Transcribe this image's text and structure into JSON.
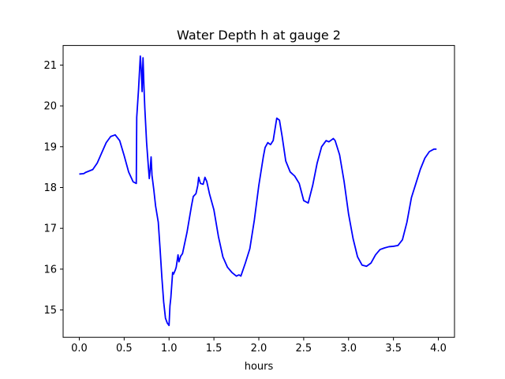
{
  "chart_data": {
    "type": "line",
    "title": "Water Depth h at gauge 2",
    "xlabel": "hours",
    "ylabel": "",
    "xlim": [
      -0.18,
      4.18
    ],
    "ylim": [
      14.33,
      21.48
    ],
    "xticks": [
      0.0,
      0.5,
      1.0,
      1.5,
      2.0,
      2.5,
      3.0,
      3.5,
      4.0
    ],
    "xtick_labels": [
      "0.0",
      "0.5",
      "1.0",
      "1.5",
      "2.0",
      "2.5",
      "3.0",
      "3.5",
      "4.0"
    ],
    "yticks": [
      15,
      16,
      17,
      18,
      19,
      20,
      21
    ],
    "ytick_labels": [
      "15",
      "16",
      "17",
      "18",
      "19",
      "20",
      "21"
    ],
    "grid": false,
    "colors": {
      "line": "#0000ff",
      "axes": "#000000",
      "background": "#ffffff"
    },
    "series": [
      {
        "color": "#0000ff",
        "x": [
          0.0,
          0.05,
          0.07,
          0.15,
          0.2,
          0.25,
          0.3,
          0.35,
          0.4,
          0.45,
          0.5,
          0.55,
          0.6,
          0.635,
          0.64,
          0.66,
          0.68,
          0.69,
          0.7,
          0.71,
          0.72,
          0.73,
          0.75,
          0.77,
          0.78,
          0.79,
          0.8,
          0.81,
          0.83,
          0.85,
          0.88,
          0.9,
          0.92,
          0.94,
          0.96,
          0.98,
          1.0,
          1.01,
          1.02,
          1.04,
          1.05,
          1.07,
          1.08,
          1.1,
          1.11,
          1.13,
          1.15,
          1.2,
          1.25,
          1.27,
          1.3,
          1.32,
          1.33,
          1.35,
          1.38,
          1.4,
          1.42,
          1.45,
          1.5,
          1.55,
          1.6,
          1.65,
          1.7,
          1.75,
          1.78,
          1.8,
          1.85,
          1.9,
          1.95,
          2.0,
          2.05,
          2.07,
          2.1,
          2.13,
          2.16,
          2.2,
          2.23,
          2.26,
          2.3,
          2.35,
          2.4,
          2.45,
          2.5,
          2.55,
          2.6,
          2.65,
          2.7,
          2.75,
          2.78,
          2.8,
          2.83,
          2.85,
          2.9,
          2.95,
          3.0,
          3.05,
          3.1,
          3.15,
          3.2,
          3.25,
          3.3,
          3.35,
          3.4,
          3.45,
          3.5,
          3.55,
          3.6,
          3.65,
          3.7,
          3.75,
          3.8,
          3.85,
          3.9,
          3.95,
          3.98
        ],
        "y": [
          18.33,
          18.34,
          18.37,
          18.44,
          18.6,
          18.85,
          19.1,
          19.25,
          19.29,
          19.15,
          18.78,
          18.38,
          18.14,
          18.1,
          19.72,
          20.4,
          21.22,
          20.9,
          20.35,
          21.18,
          20.5,
          19.95,
          19.1,
          18.5,
          18.22,
          18.45,
          18.75,
          18.3,
          17.95,
          17.55,
          17.15,
          16.5,
          15.8,
          15.2,
          14.8,
          14.68,
          14.62,
          15.1,
          15.3,
          15.92,
          15.88,
          15.98,
          16.05,
          16.35,
          16.18,
          16.32,
          16.38,
          16.9,
          17.55,
          17.78,
          17.85,
          18.05,
          18.25,
          18.1,
          18.08,
          18.25,
          18.15,
          17.85,
          17.45,
          16.8,
          16.3,
          16.05,
          15.92,
          15.83,
          15.86,
          15.83,
          16.15,
          16.5,
          17.2,
          18.05,
          18.75,
          18.98,
          19.1,
          19.05,
          19.15,
          19.7,
          19.65,
          19.25,
          18.65,
          18.38,
          18.28,
          18.1,
          17.68,
          17.62,
          18.05,
          18.6,
          19.0,
          19.15,
          19.12,
          19.15,
          19.2,
          19.15,
          18.8,
          18.15,
          17.35,
          16.75,
          16.3,
          16.1,
          16.07,
          16.15,
          16.35,
          16.48,
          16.52,
          16.55,
          16.56,
          16.58,
          16.72,
          17.15,
          17.75,
          18.1,
          18.45,
          18.72,
          18.88,
          18.94,
          18.94
        ]
      }
    ]
  }
}
